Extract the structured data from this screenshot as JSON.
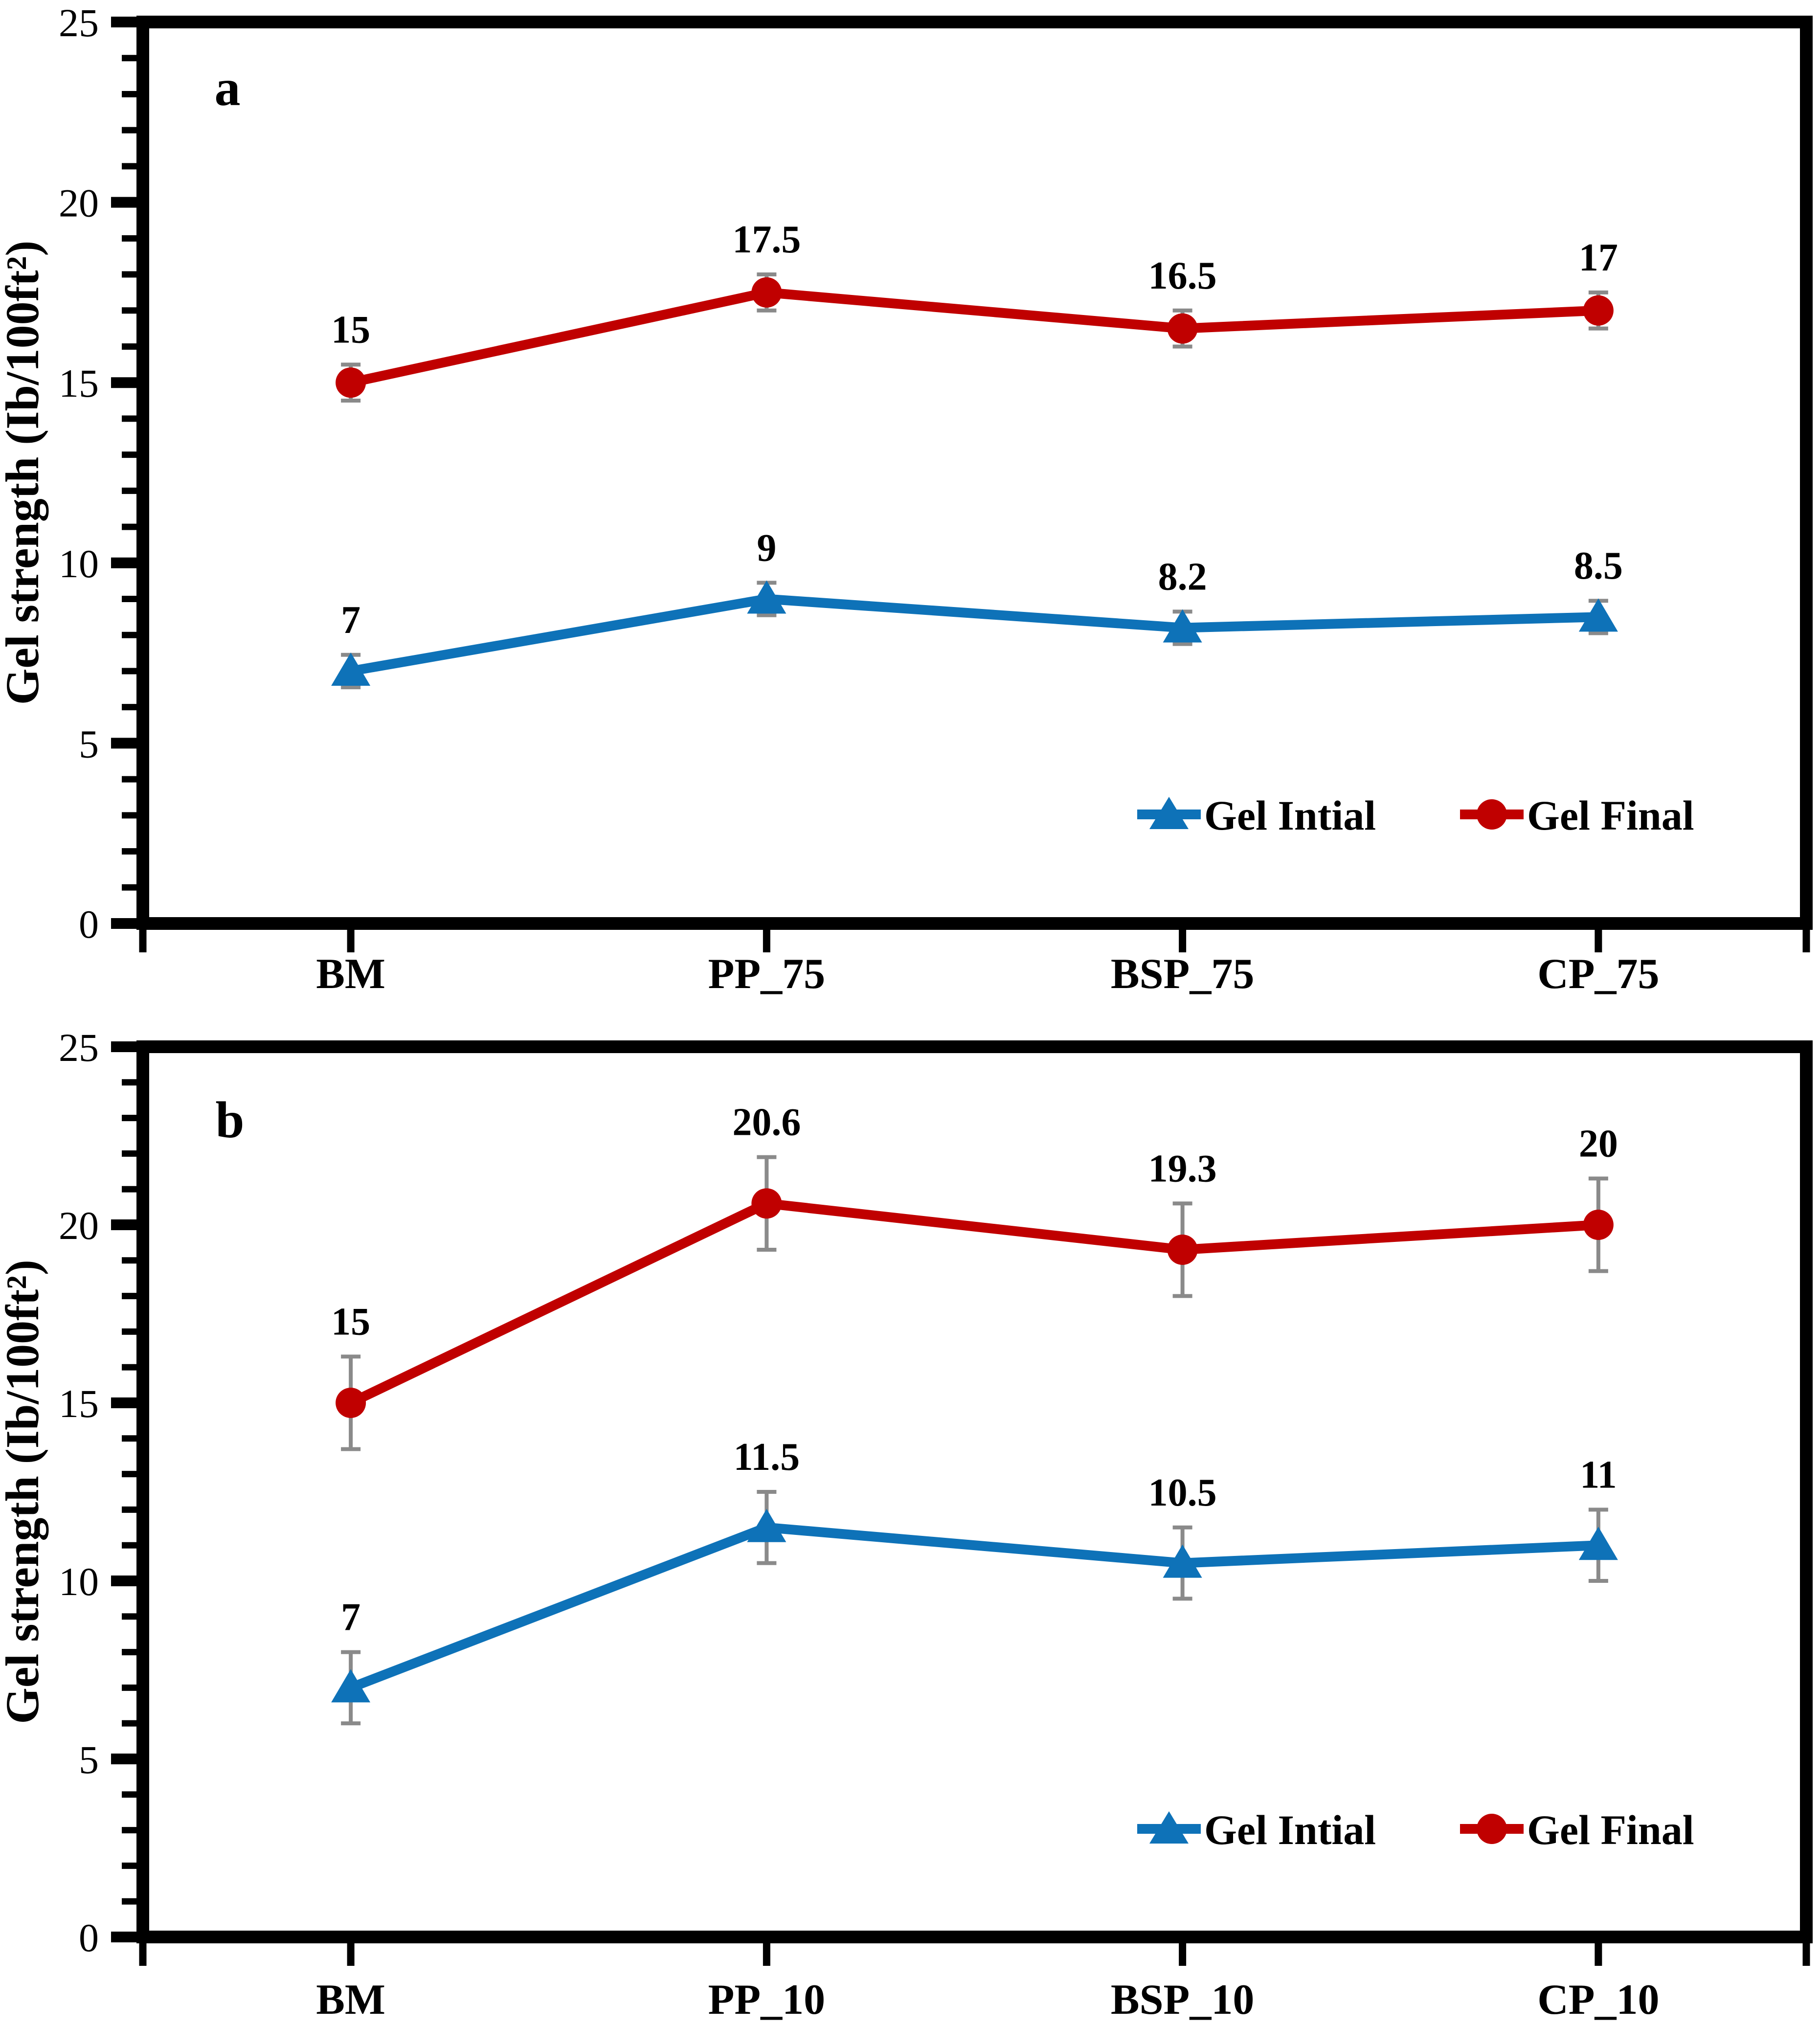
{
  "page": {
    "background": "#ffffff"
  },
  "colors": {
    "series_initial": "#0E72B8",
    "series_final": "#C00000",
    "error_bar": "#8A8A8A",
    "axis": "#000000"
  },
  "y_axis": {
    "title": "Gel strength (Ib/100ft²)",
    "min": 0,
    "max": 25,
    "major_step": 5,
    "minor_step": 1,
    "tick_labels": [
      "0",
      "5",
      "10",
      "15",
      "20",
      "25"
    ]
  },
  "chart_data": [
    {
      "type": "line",
      "panel_label": "a",
      "ylabel": "Gel strength (Ib/100ft²)",
      "ylim": [
        0,
        25
      ],
      "grid": false,
      "legend_position": "lower-right",
      "categories": [
        "BM",
        "PP_75",
        "BSP_75",
        "CP_75"
      ],
      "series": [
        {
          "name": "Gel Intial",
          "marker": "triangle",
          "color": "#0E72B8",
          "values": [
            7,
            9,
            8.2,
            8.5
          ],
          "labels": [
            "7",
            "9",
            "8.2",
            "8.5"
          ],
          "error": 0.45
        },
        {
          "name": "Gel Final",
          "marker": "circle",
          "color": "#C00000",
          "values": [
            15,
            17.5,
            16.5,
            17
          ],
          "labels": [
            "15",
            "17.5",
            "16.5",
            "17"
          ],
          "error": 0.5
        }
      ]
    },
    {
      "type": "line",
      "panel_label": "b",
      "ylabel": "Gel strength (Ib/100ft²)",
      "ylim": [
        0,
        25
      ],
      "grid": false,
      "legend_position": "lower-right",
      "categories": [
        "BM",
        "PP_10",
        "BSP_10",
        "CP_10"
      ],
      "series": [
        {
          "name": "Gel Intial",
          "marker": "triangle",
          "color": "#0E72B8",
          "values": [
            7,
            11.5,
            10.5,
            11
          ],
          "labels": [
            "7",
            "11.5",
            "10.5",
            "11"
          ],
          "error": 1.0
        },
        {
          "name": "Gel Final",
          "marker": "circle",
          "color": "#C00000",
          "values": [
            15,
            20.6,
            19.3,
            20
          ],
          "labels": [
            "15",
            "20.6",
            "19.3",
            "20"
          ],
          "error": 1.3
        }
      ]
    }
  ]
}
